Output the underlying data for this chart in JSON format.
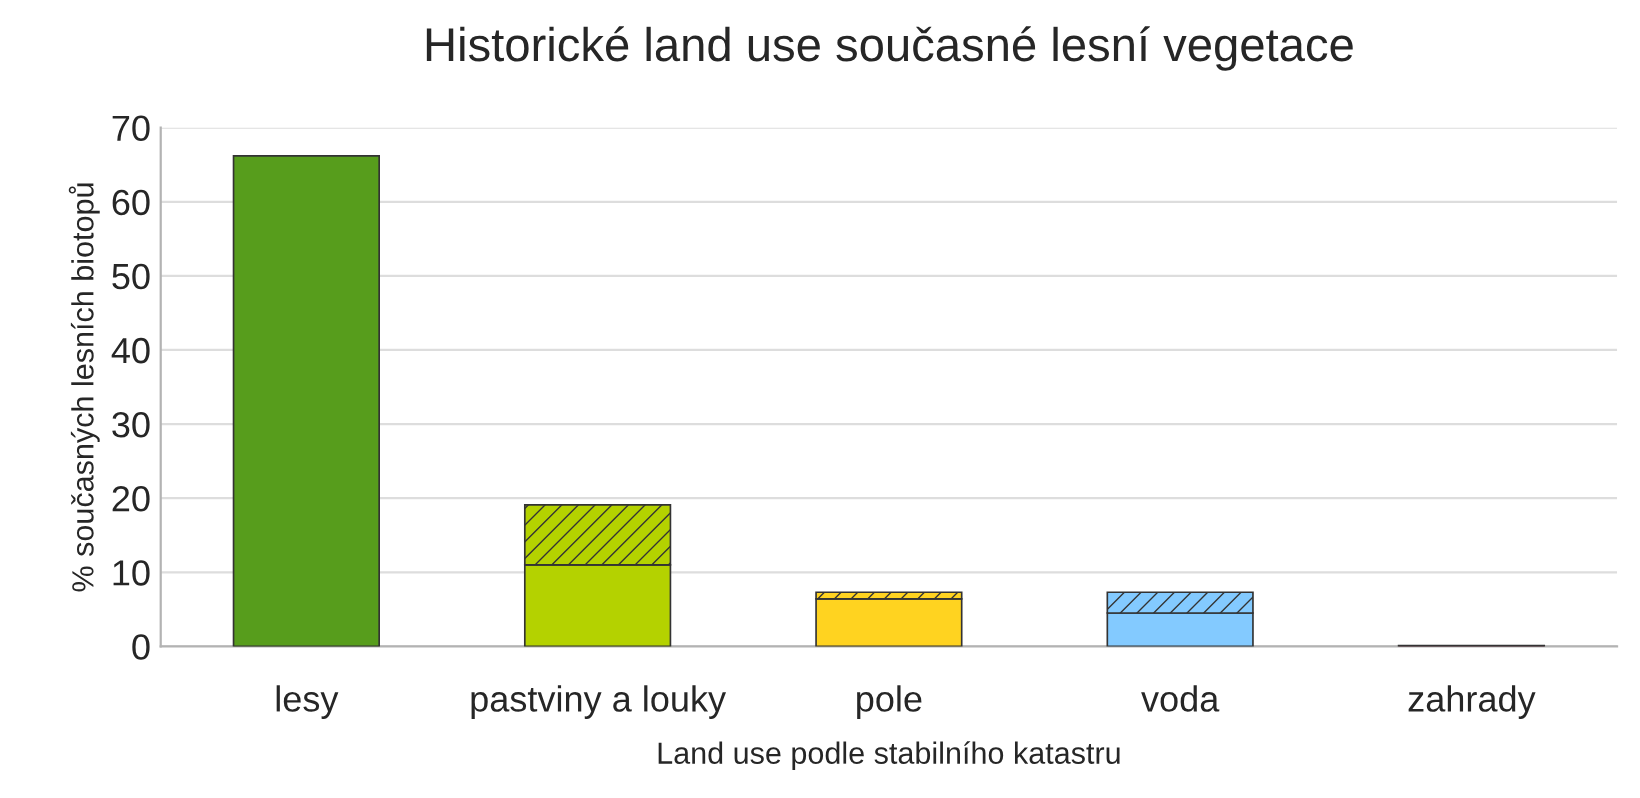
{
  "chart_data": {
    "type": "bar",
    "title": "Historické land use současné lesní vegetace",
    "xlabel": "Land use podle stabilního katastru",
    "ylabel": "% současných lesních biotopů",
    "categories": [
      "lesy",
      "pastviny a louky",
      "pole",
      "voda",
      "zahrady"
    ],
    "stacked": true,
    "series": [
      {
        "colors": [
          "#579d1c",
          "#b4d200",
          "#ffd320",
          "#83caff",
          "#7e0021"
        ],
        "values": [
          66.2,
          11.0,
          6.4,
          4.5,
          0.1
        ]
      },
      {
        "colors": [
          "#579d1c",
          "#b4d200",
          "#ffd320",
          "#83caff",
          "#7e0021"
        ],
        "values": [
          null,
          8.1,
          0.9,
          2.8,
          null
        ]
      }
    ],
    "ylim": [
      0,
      70
    ],
    "yticks": [
      0,
      10,
      20,
      30,
      40,
      50,
      60,
      70
    ],
    "grid": "y",
    "legend": false
  }
}
